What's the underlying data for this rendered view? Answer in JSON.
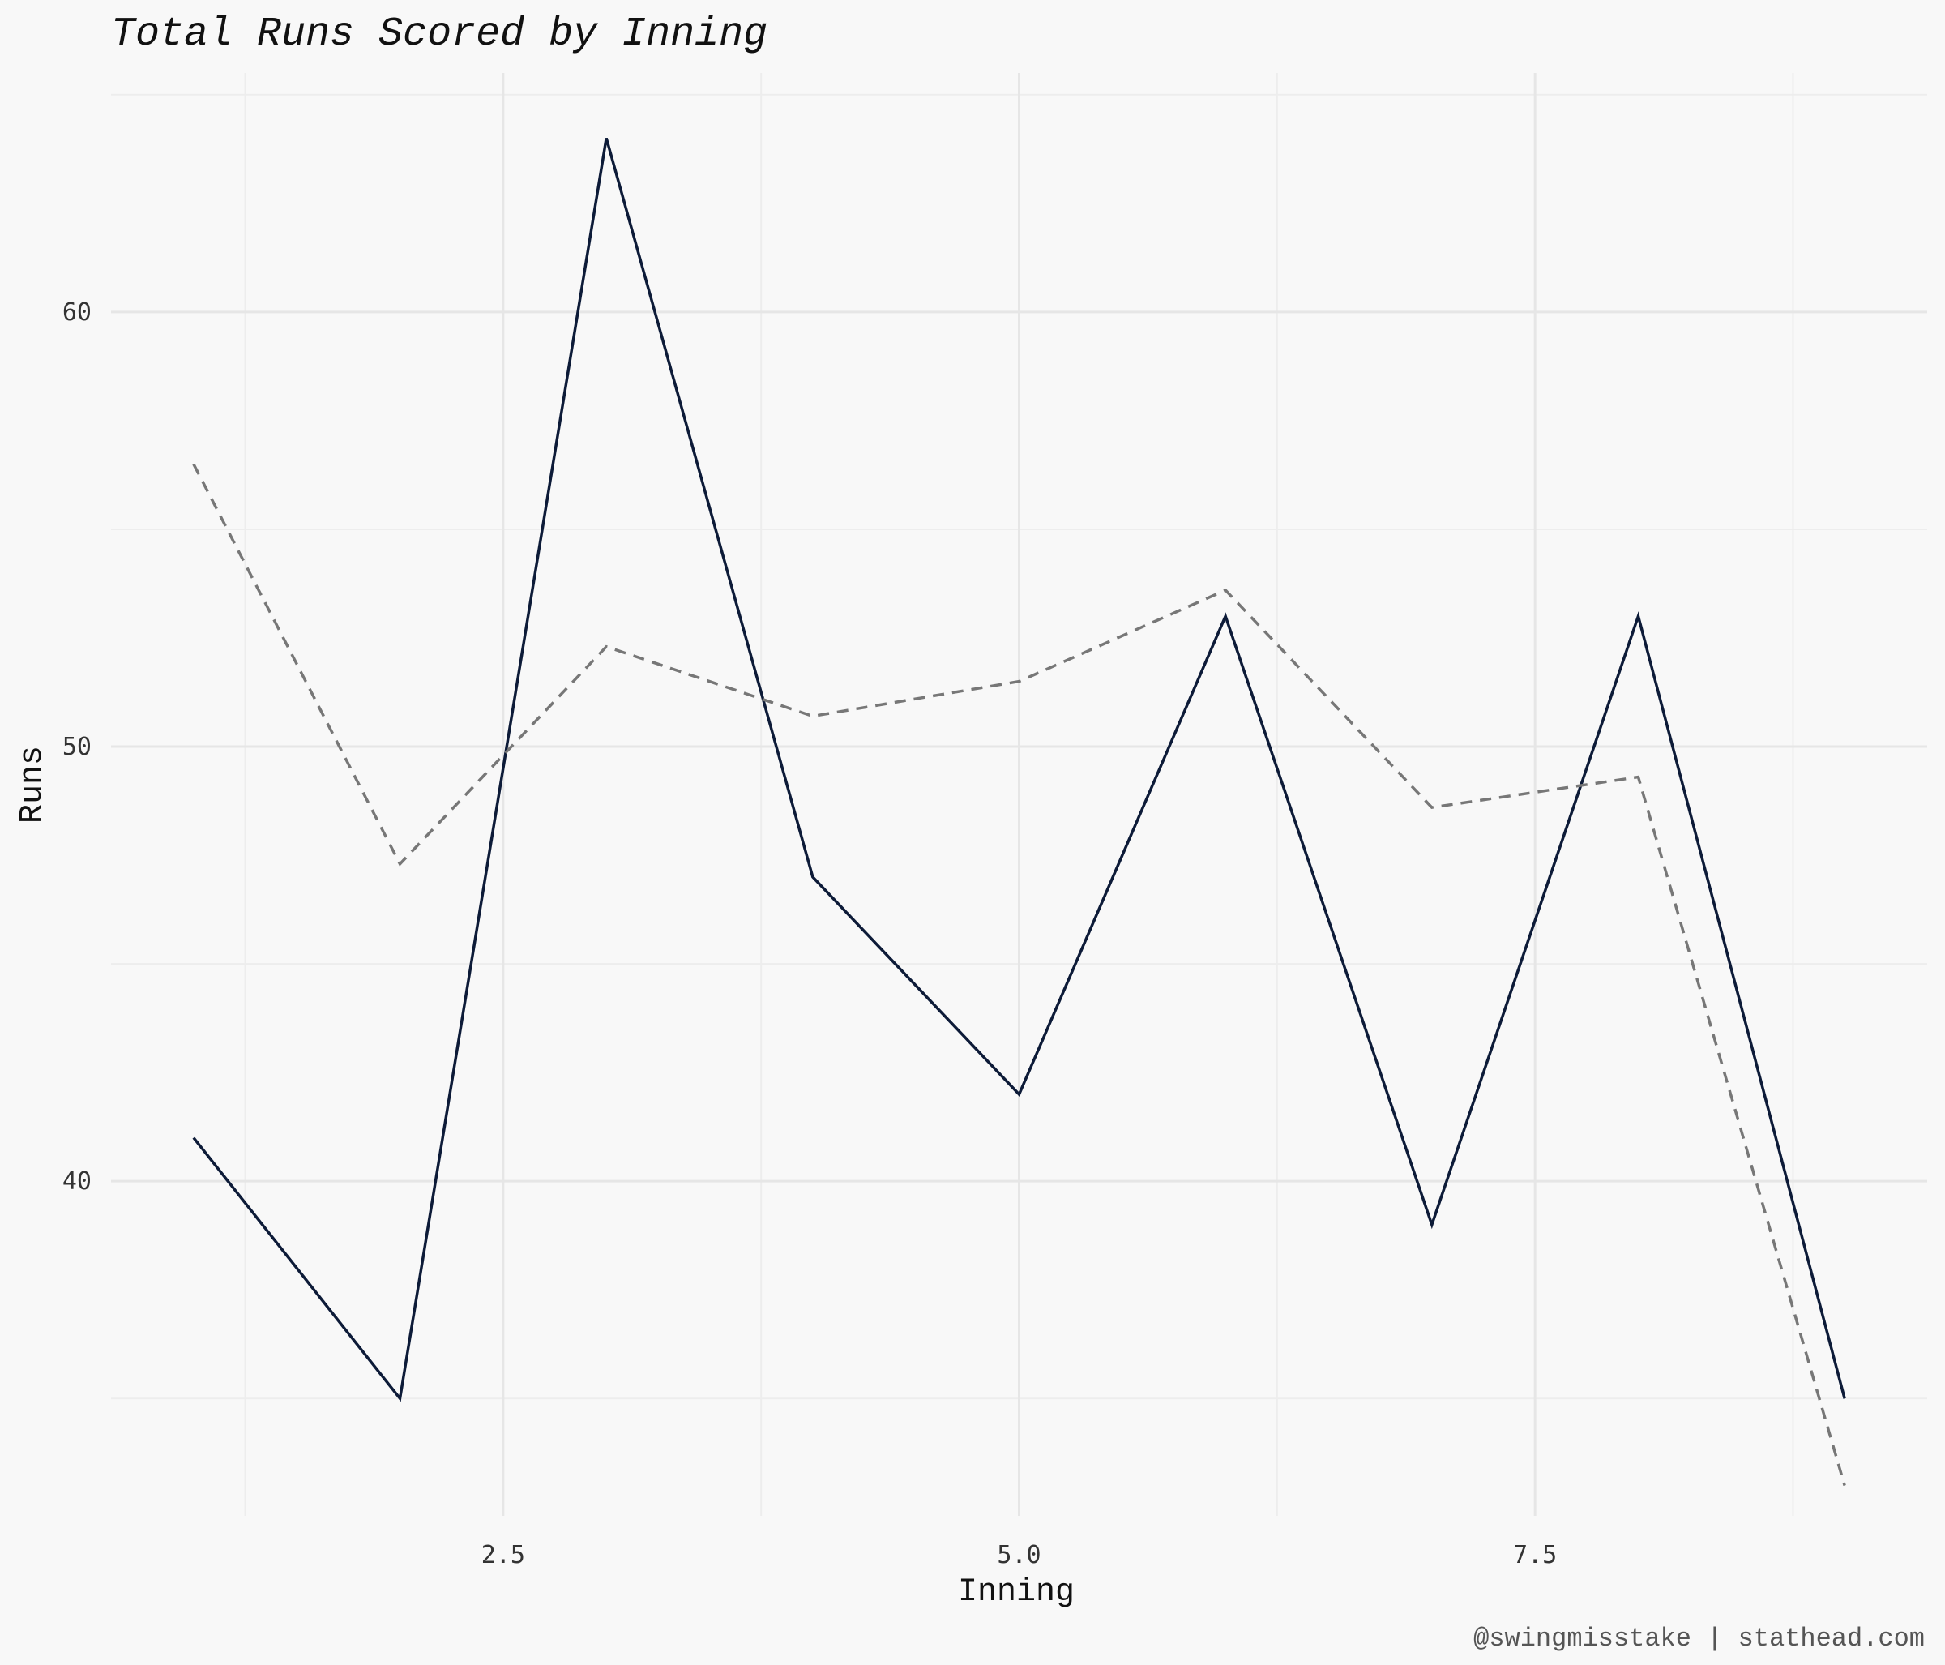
{
  "chart_data": {
    "type": "line",
    "title": "Total Runs Scored by Inning",
    "xlabel": "Inning",
    "ylabel": "Runs",
    "caption": "@swingmisstake | stathead.com",
    "x": [
      1,
      2,
      3,
      4,
      5,
      6,
      7,
      8,
      9
    ],
    "series": [
      {
        "style": "solid",
        "color": "#0d1b38",
        "values": [
          41,
          35,
          64,
          47,
          42,
          53,
          39,
          53,
          35
        ]
      },
      {
        "style": "dashed",
        "color": "#777777",
        "values": [
          56.5,
          47.3,
          52.3,
          50.7,
          51.5,
          53.6,
          48.6,
          49.3,
          33
        ]
      }
    ],
    "xlim": [
      0.6,
      9.4
    ],
    "ylim": [
      32.3,
      65.5
    ],
    "x_ticks": [
      {
        "value": 2.5,
        "label": "2.5"
      },
      {
        "value": 5.0,
        "label": "5.0"
      },
      {
        "value": 7.5,
        "label": "7.5"
      }
    ],
    "x_minor": [
      1.25,
      3.75,
      6.25,
      8.75
    ],
    "y_ticks": [
      {
        "value": 40,
        "label": "40"
      },
      {
        "value": 50,
        "label": "50"
      },
      {
        "value": 60,
        "label": "60"
      }
    ],
    "y_minor": [
      35,
      45,
      55,
      65
    ],
    "grid": true,
    "legend": "none"
  }
}
